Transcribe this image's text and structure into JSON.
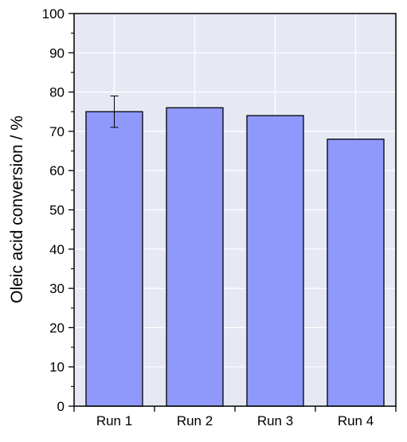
{
  "chart_data": {
    "type": "bar",
    "title": "",
    "xlabel": "",
    "ylabel": "Oleic acid conversion / %",
    "categories": [
      "Run 1",
      "Run 2",
      "Run 3",
      "Run 4"
    ],
    "values": [
      75,
      76,
      74,
      68
    ],
    "error_bars": [
      4,
      null,
      null,
      null
    ],
    "ylim": [
      0,
      100
    ],
    "yticks": [
      0,
      10,
      20,
      30,
      40,
      50,
      60,
      70,
      80,
      90,
      100
    ],
    "grid": true,
    "legend": "none",
    "colors": {
      "bar_fill": "#8f99fb",
      "bar_stroke": "#000000",
      "plot_background": "#e6e9f3",
      "grid": "#ffffff"
    }
  }
}
